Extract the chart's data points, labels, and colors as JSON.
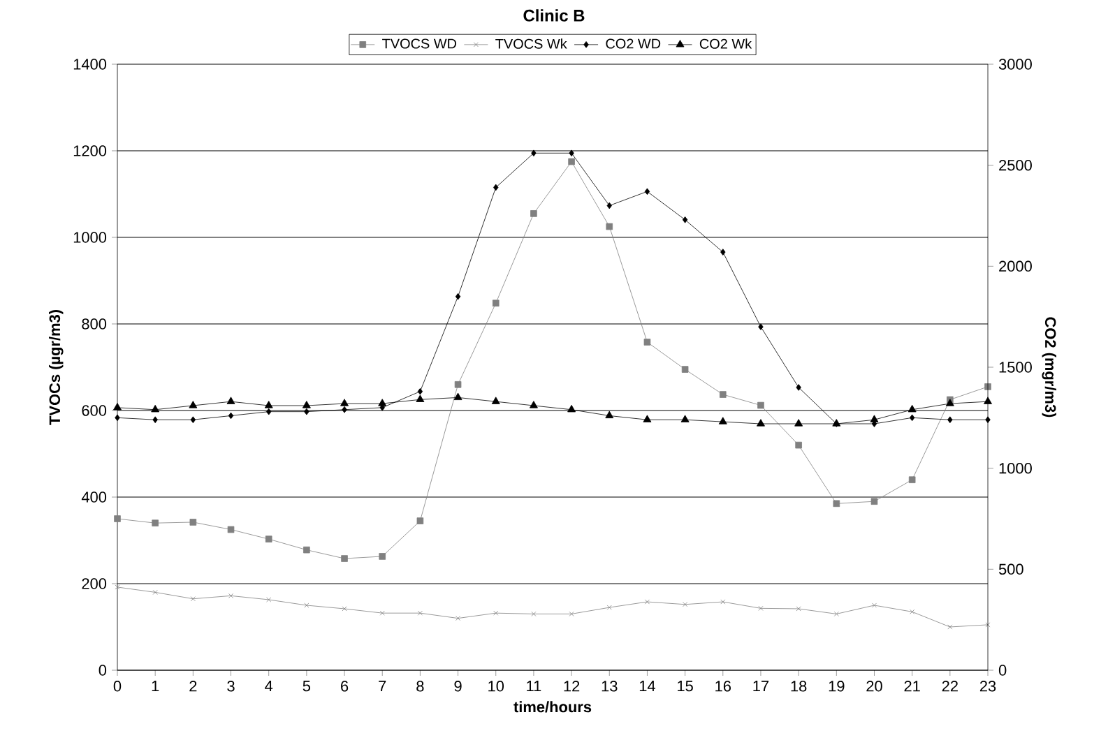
{
  "chart_data": {
    "type": "line",
    "title": "Clinic B",
    "xlabel": "time/hours",
    "ylabel": "TVOCs  (µgr/m3)",
    "y2label": "CO2 (mgr/m3)",
    "x": [
      0,
      1,
      2,
      3,
      4,
      5,
      6,
      7,
      8,
      9,
      10,
      11,
      12,
      13,
      14,
      15,
      16,
      17,
      18,
      19,
      20,
      21,
      22,
      23
    ],
    "xlim": [
      0,
      23
    ],
    "xticks": [
      0,
      1,
      2,
      3,
      4,
      5,
      6,
      7,
      8,
      9,
      10,
      11,
      12,
      13,
      14,
      15,
      16,
      17,
      18,
      19,
      20,
      21,
      22,
      23
    ],
    "ylim": [
      0,
      1400
    ],
    "yticks": [
      0,
      200,
      400,
      600,
      800,
      1000,
      1200,
      1400
    ],
    "y2lim": [
      0,
      3000
    ],
    "y2ticks": [
      0,
      500,
      1000,
      1500,
      2000,
      2500,
      3000
    ],
    "grid": "y",
    "legend": "top",
    "line_style": "solid",
    "series": [
      {
        "name": "TVOCS WD",
        "color": "#808080",
        "marker": "square",
        "values": [
          350,
          340,
          342,
          325,
          303,
          278,
          258,
          263,
          345,
          660,
          848,
          1055,
          1175,
          1025,
          758,
          695,
          637,
          612,
          520,
          385,
          390,
          440,
          625,
          655
        ]
      },
      {
        "name": "TVOCS Wk",
        "color": "#808080",
        "marker": "cross",
        "values": [
          192,
          180,
          165,
          172,
          163,
          150,
          142,
          132,
          132,
          120,
          132,
          130,
          130,
          145,
          158,
          152,
          158,
          143,
          142,
          130,
          150,
          135,
          100,
          105
        ]
      },
      {
        "name": "CO2 WD",
        "color": "#000000",
        "marker": "diamond",
        "axis": "y2",
        "values": [
          1250,
          1240,
          1240,
          1260,
          1280,
          1280,
          1290,
          1300,
          1380,
          1850,
          2390,
          2560,
          2560,
          2300,
          2370,
          2230,
          2070,
          1700,
          1400,
          1220,
          1220,
          1250,
          1240,
          1240
        ]
      },
      {
        "name": "CO2 Wk",
        "color": "#000000",
        "marker": "triangle",
        "axis": "y2",
        "values": [
          1300,
          1290,
          1310,
          1330,
          1310,
          1310,
          1320,
          1320,
          1340,
          1350,
          1330,
          1310,
          1290,
          1260,
          1240,
          1240,
          1230,
          1220,
          1220,
          1220,
          1240,
          1290,
          1320,
          1330
        ]
      }
    ]
  }
}
